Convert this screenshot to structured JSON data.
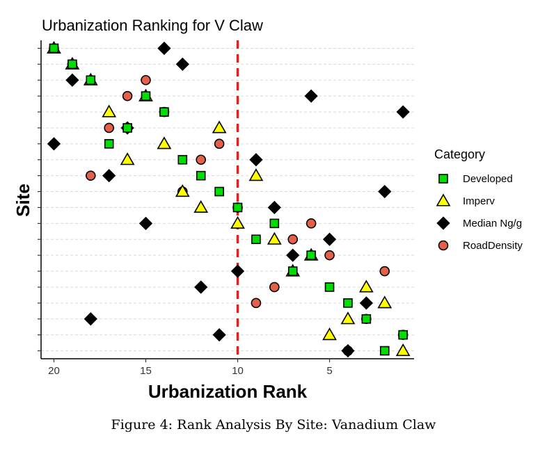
{
  "caption": "Figure 4: Rank Analysis By Site: Vanadium Claw",
  "chart_data": {
    "type": "scatter",
    "title": "Urbanization Ranking for V Claw",
    "xlabel": "Urbanization Rank",
    "ylabel": "Site",
    "x_reversed": true,
    "xlim": [
      20.7,
      0.4
    ],
    "x_ticks": [
      20,
      15,
      10,
      5
    ],
    "ylim": [
      0.5,
      20.5
    ],
    "y_tick_labels_visible": false,
    "grid": "horizontal dashed",
    "reference_line": {
      "x": 10,
      "color": "#e8201a",
      "style": "dashed"
    },
    "legend": {
      "title": "Category",
      "position": "right"
    },
    "series": [
      {
        "name": "Developed",
        "marker": "square",
        "color": "#00dd00",
        "points": [
          [
            20,
            20
          ],
          [
            19,
            19
          ],
          [
            18,
            18
          ],
          [
            15,
            17
          ],
          [
            14,
            16
          ],
          [
            16,
            15
          ],
          [
            17,
            14
          ],
          [
            13,
            13
          ],
          [
            12,
            12
          ],
          [
            11,
            11
          ],
          [
            10,
            10
          ],
          [
            8,
            9
          ],
          [
            9,
            8
          ],
          [
            6,
            7
          ],
          [
            7,
            6
          ],
          [
            5,
            5
          ],
          [
            4,
            4
          ],
          [
            3,
            3
          ],
          [
            1,
            2
          ],
          [
            2,
            1
          ]
        ]
      },
      {
        "name": "Imperv",
        "marker": "triangle",
        "color": "#ffff00",
        "points": [
          [
            20,
            20
          ],
          [
            19,
            19
          ],
          [
            18,
            18
          ],
          [
            15,
            17
          ],
          [
            17,
            16
          ],
          [
            11,
            15
          ],
          [
            14,
            14
          ],
          [
            16,
            13
          ],
          [
            9,
            12
          ],
          [
            13,
            11
          ],
          [
            12,
            10
          ],
          [
            10,
            9
          ],
          [
            8,
            8
          ],
          [
            6,
            7
          ],
          [
            7,
            6
          ],
          [
            3,
            5
          ],
          [
            2,
            4
          ],
          [
            4,
            3
          ],
          [
            5,
            2
          ],
          [
            1,
            1
          ]
        ]
      },
      {
        "name": "Median Ng/g",
        "marker": "diamond",
        "color": "#000000",
        "points": [
          [
            14,
            20
          ],
          [
            13,
            19
          ],
          [
            19,
            18
          ],
          [
            6,
            17
          ],
          [
            1,
            16
          ],
          [
            16,
            15
          ],
          [
            20,
            14
          ],
          [
            9,
            13
          ],
          [
            17,
            12
          ],
          [
            2,
            11
          ],
          [
            8,
            10
          ],
          [
            15,
            9
          ],
          [
            5,
            8
          ],
          [
            7,
            7
          ],
          [
            10,
            6
          ],
          [
            12,
            5
          ],
          [
            3,
            4
          ],
          [
            18,
            3
          ],
          [
            11,
            2
          ],
          [
            4,
            1
          ]
        ]
      },
      {
        "name": "RoadDensity",
        "marker": "circle",
        "color": "#e3604b",
        "points": [
          [
            20,
            20
          ],
          [
            19,
            19
          ],
          [
            15,
            18
          ],
          [
            16,
            17
          ],
          [
            14,
            16
          ],
          [
            17,
            15
          ],
          [
            11,
            14
          ],
          [
            12,
            13
          ],
          [
            18,
            12
          ],
          [
            13,
            11
          ],
          [
            10,
            10
          ],
          [
            6,
            9
          ],
          [
            7,
            8
          ],
          [
            5,
            7
          ],
          [
            2,
            6
          ],
          [
            8,
            5
          ],
          [
            9,
            4
          ],
          [
            3,
            3
          ],
          [
            1,
            2
          ],
          [
            4,
            1
          ]
        ]
      }
    ]
  }
}
